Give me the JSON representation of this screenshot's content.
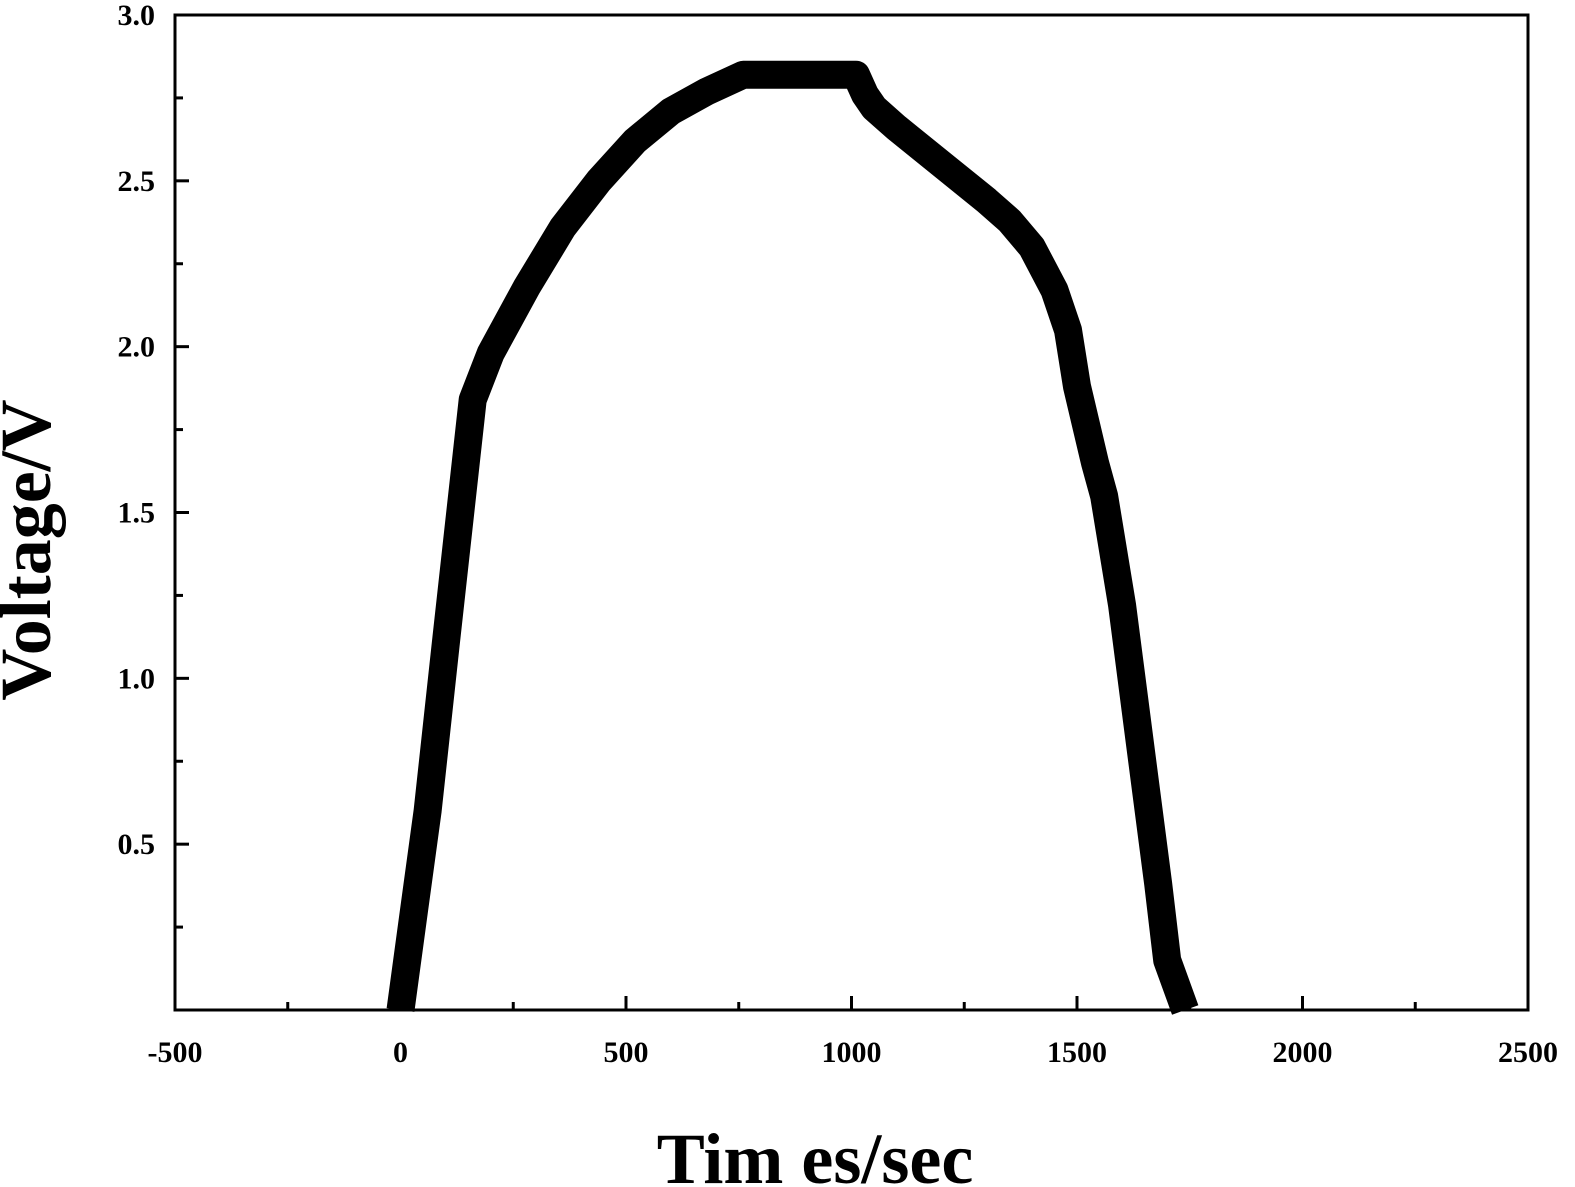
{
  "chart_data": {
    "type": "line",
    "title": "",
    "xlabel": "Tim es/sec",
    "ylabel": "Voltage/V",
    "xlim": [
      -500,
      2500
    ],
    "ylim": [
      0,
      3.0
    ],
    "x_ticks": [
      -500,
      0,
      500,
      1000,
      1500,
      2000,
      2500
    ],
    "x_tick_labels": [
      "-500",
      "0",
      "500",
      "1000",
      "1500",
      "2000",
      "2500"
    ],
    "y_ticks": [
      0.5,
      1.0,
      1.5,
      2.0,
      2.5,
      3.0
    ],
    "y_tick_labels": [
      "0.5",
      "1.0",
      "1.5",
      "2.0",
      "2.5",
      "3.0"
    ],
    "grid": false,
    "legend": "none",
    "line_color": "#000000",
    "series": [
      {
        "x": [
          0,
          30,
          60,
          100,
          160,
          200,
          280,
          360,
          440,
          520,
          600,
          680,
          760,
          800,
          900,
          1010,
          1030,
          1050,
          1100,
          1200,
          1300,
          1350,
          1400,
          1450,
          1480,
          1500,
          1540,
          1560,
          1600,
          1640,
          1680,
          1700,
          1740
        ],
        "y": [
          0,
          0.3,
          0.6,
          1.1,
          1.84,
          1.98,
          2.18,
          2.36,
          2.5,
          2.62,
          2.71,
          2.77,
          2.82,
          2.82,
          2.82,
          2.82,
          2.76,
          2.72,
          2.66,
          2.55,
          2.44,
          2.38,
          2.3,
          2.17,
          2.05,
          1.88,
          1.65,
          1.55,
          1.22,
          0.8,
          0.38,
          0.15,
          0
        ]
      }
    ]
  }
}
